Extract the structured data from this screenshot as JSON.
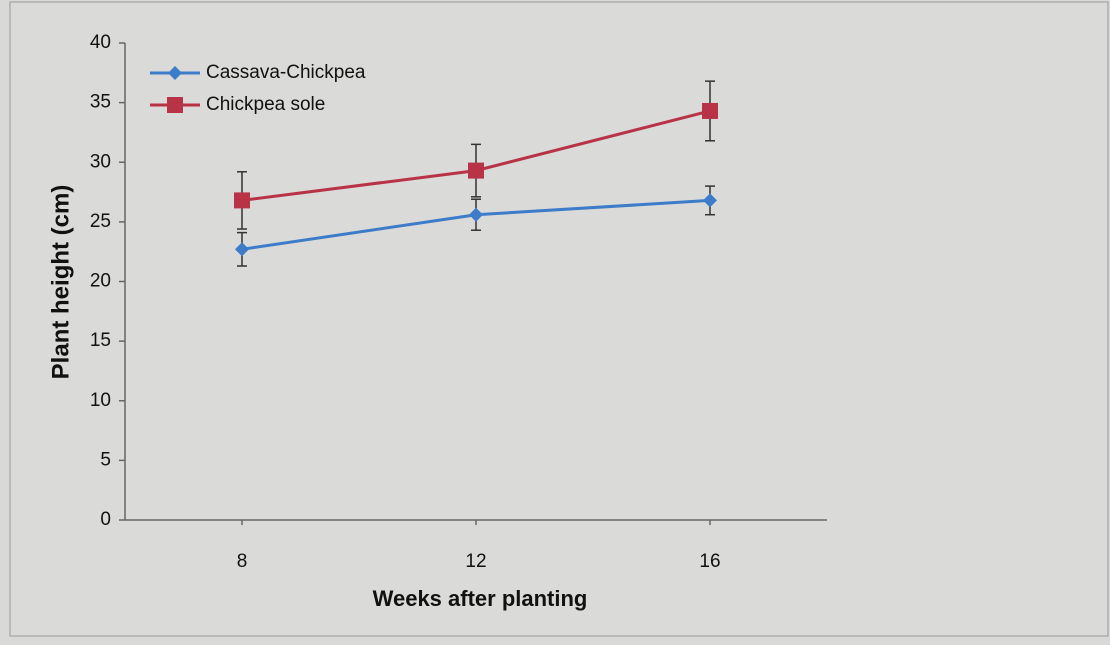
{
  "chart_data": {
    "type": "line",
    "x_label": "Weeks after planting",
    "y_label": "Plant height (cm)",
    "x": [
      8,
      12,
      16
    ],
    "xlim": [
      6,
      18
    ],
    "xticks": [
      8,
      12,
      16
    ],
    "ylim": [
      0,
      40
    ],
    "yticks": [
      0,
      5,
      10,
      15,
      20,
      25,
      30,
      35,
      40
    ],
    "legend": "upper left",
    "series": [
      {
        "name": "Cassava-Chickpea",
        "color": "#3d7cc9",
        "marker": "diamond",
        "values": [
          22.7,
          25.6,
          26.8
        ],
        "errors": [
          1.4,
          1.3,
          1.2
        ]
      },
      {
        "name": "Chickpea sole",
        "color": "#b93347",
        "marker": "square",
        "values": [
          26.8,
          29.3,
          34.3
        ],
        "errors": [
          2.4,
          2.2,
          2.5
        ]
      }
    ]
  }
}
